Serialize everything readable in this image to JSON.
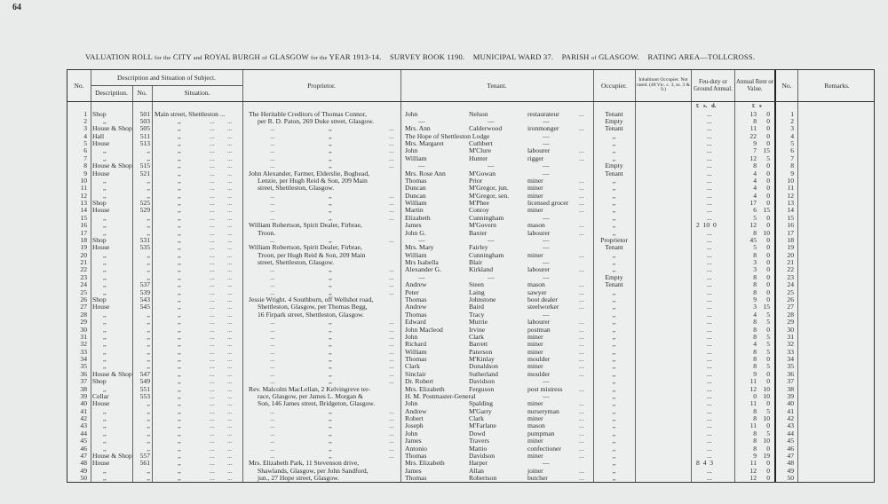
{
  "page_number": "64",
  "title": {
    "part1": "VALUATION ROLL",
    "part2": "for the",
    "part3": "CITY",
    "part4": "and",
    "part5": "ROYAL BURGH",
    "part6": "of",
    "part7": "GLASGOW",
    "part8": "for the",
    "part9": "YEAR 1913-14.",
    "survey": "SURVEY BOOK 1190.",
    "ward": "MUNICIPAL WARD 37.",
    "parish_a": "PARISH",
    "parish_b": "of",
    "parish_c": "GLASGOW.",
    "area": "RATING AREA—TOLLCROSS."
  },
  "headers": {
    "no": "No.",
    "desc_group": "Description and Situation of Subject.",
    "description": "Description.",
    "desc_no": "No.",
    "situation": "Situation.",
    "proprietor": "Proprietor.",
    "tenant": "Tenant.",
    "occupier": "Occupier.",
    "inhabitant": "Inhabitant Occupier. Not rated. (48 Vic. c. 3, ss. 3 & 9.)",
    "feu": "Feu-duty or Ground Annual.",
    "rent": "Annual Rent or Value.",
    "no2": "No.",
    "remarks": "Remarks.",
    "feu_units": "£   s.   d.",
    "rent_units": "£   s"
  },
  "rows": [
    {
      "no": "1",
      "desc": "Shop",
      "num": "501",
      "sit": "Main street, Shettleston ...",
      "prop": "The Heritable Creditors of Thomas Connor,",
      "tf": "John",
      "tl": "Nelson",
      "occ": "restaurateur",
      "occupier": "Tenant",
      "feu": "...",
      "rl": "13",
      "rs": "0"
    },
    {
      "no": "2",
      "desc": ",,",
      "num": "503",
      "sit": ",,",
      "prop": "per R. D. Paton, 269 Duke street, Glasgow.",
      "tf": "—",
      "tl": "—",
      "occ": "—",
      "occupier": "Empty",
      "feu": "...",
      "rl": "8",
      "rs": "0"
    },
    {
      "no": "3",
      "desc": "House & Shop",
      "num": "505",
      "sit": ",,",
      "prop": ",,",
      "tf": "Mrs. Ann",
      "tl": "Calderwood",
      "occ": "ironmonger",
      "occupier": "Tenant",
      "feu": "...",
      "rl": "11",
      "rs": "0"
    },
    {
      "no": "4",
      "desc": "Hall",
      "num": "511",
      "sit": ",,",
      "prop": ",,",
      "tf": "The Hope of Shettleston Lodge",
      "tl": "",
      "occ": "—",
      "occupier": ",,",
      "feu": "...",
      "rl": "22",
      "rs": "0"
    },
    {
      "no": "5",
      "desc": "House",
      "num": "513",
      "sit": ",,",
      "prop": ",,",
      "tf": "Mrs. Margaret",
      "tl": "Cuthbert",
      "occ": "—",
      "occupier": ",,",
      "feu": "...",
      "rl": "9",
      "rs": "0"
    },
    {
      "no": "6",
      "desc": ",,",
      "num": ",,",
      "sit": ",,",
      "prop": ",,",
      "tf": "John",
      "tl": "M'Clure",
      "occ": "labourer",
      "occupier": ",,",
      "feu": "...",
      "rl": "7",
      "rs": "15"
    },
    {
      "no": "7",
      "desc": ",,",
      "num": ",,",
      "sit": ",,",
      "prop": ",,",
      "tf": "William",
      "tl": "Hunter",
      "occ": "rigger",
      "occupier": ",,",
      "feu": "...",
      "rl": "12",
      "rs": "5"
    },
    {
      "no": "8",
      "desc": "House & Shop",
      "num": "515",
      "sit": ",,",
      "prop": ",,",
      "tf": "—",
      "tl": "—",
      "occ": "—",
      "occupier": "Empty",
      "feu": "...",
      "rl": "8",
      "rs": "0"
    },
    {
      "no": "9",
      "desc": "House",
      "num": "521",
      "sit": ",,",
      "prop": "John Alexander, Farmer, Elderslie, Boghead,",
      "tf": "Mrs. Rose Ann",
      "tl": "M'Gowan",
      "occ": "—",
      "occupier": "Tenant",
      "feu": "...",
      "rl": "4",
      "rs": "0"
    },
    {
      "no": "10",
      "desc": ",,",
      "num": ",,",
      "sit": ",,",
      "prop": "Lenzie, per Hugh Reid & Son, 209 Main",
      "tf": "Thomas",
      "tl": "Prior",
      "occ": "miner",
      "occupier": ",,",
      "feu": "...",
      "rl": "4",
      "rs": "0"
    },
    {
      "no": "11",
      "desc": ",,",
      "num": ",,",
      "sit": ",,",
      "prop": "street, Shettleston, Glasgow.",
      "tf": "Duncan",
      "tl": "M'Gregor, jun.",
      "occ": "miner",
      "occupier": ",,",
      "feu": "...",
      "rl": "4",
      "rs": "0"
    },
    {
      "no": "12",
      "desc": ",,",
      "num": ",,",
      "sit": ",,",
      "prop": ",,",
      "tf": "Duncan",
      "tl": "M'Gregor, sen.",
      "occ": "miner",
      "occupier": ",,",
      "feu": "...",
      "rl": "4",
      "rs": "0"
    },
    {
      "no": "13",
      "desc": "Shop",
      "num": "525",
      "sit": ",,",
      "prop": ",,",
      "tf": "William",
      "tl": "M'Phee",
      "occ": "licensed grocer",
      "occupier": ",,",
      "feu": "...",
      "rl": "17",
      "rs": "0"
    },
    {
      "no": "14",
      "desc": "House",
      "num": "529",
      "sit": ",,",
      "prop": ",,",
      "tf": "Martin",
      "tl": "Conroy",
      "occ": "miner",
      "occupier": ",,",
      "feu": "...",
      "rl": "6",
      "rs": "15"
    },
    {
      "no": "15",
      "desc": ",,",
      "num": ",,",
      "sit": ",,",
      "prop": ",,",
      "tf": "Elizabeth",
      "tl": "Cunningham",
      "occ": "—",
      "occupier": ",,",
      "feu": "...",
      "rl": "5",
      "rs": "0"
    },
    {
      "no": "16",
      "desc": ",,",
      "num": ",,",
      "sit": ",,",
      "prop": "William Robertson, Spirit Dealer, Firbrae,",
      "tf": "James",
      "tl": "M'Govern",
      "occ": "mason",
      "occupier": ",,",
      "feu": "2  10  0",
      "rl": "12",
      "rs": "0"
    },
    {
      "no": "17",
      "desc": ",,",
      "num": ",,",
      "sit": ",,",
      "prop": "Troon.",
      "tf": "John G.",
      "tl": "Baxter",
      "occ": "labourer",
      "occupier": ",,",
      "feu": "...",
      "rl": "8",
      "rs": "10"
    },
    {
      "no": "18",
      "desc": "Shop",
      "num": "531",
      "sit": ",,",
      "prop": ",,",
      "tf": "—",
      "tl": "—",
      "occ": "—",
      "occupier": "Proprietor",
      "feu": "...",
      "rl": "45",
      "rs": "0"
    },
    {
      "no": "19",
      "desc": "House",
      "num": "535",
      "sit": ",,",
      "prop": "William Robertson, Spirit Dealer, Firbrae,",
      "tf": "Mrs. Mary",
      "tl": "Fairley",
      "occ": "—",
      "occupier": "Tenant",
      "feu": "...",
      "rl": "5",
      "rs": "0"
    },
    {
      "no": "20",
      "desc": ",,",
      "num": ",,",
      "sit": ",,",
      "prop": "Troon, per Hugh Reid & Son, 209 Main",
      "tf": "William",
      "tl": "Cunningham",
      "occ": "miner",
      "occupier": ",,",
      "feu": "...",
      "rl": "8",
      "rs": "0"
    },
    {
      "no": "21",
      "desc": ",,",
      "num": ",,",
      "sit": ",,",
      "prop": "street, Shettleston, Glasgow.",
      "tf": "Mrs Isabella",
      "tl": "Blair",
      "occ": "—",
      "occupier": ",,",
      "feu": "...",
      "rl": "3",
      "rs": "0"
    },
    {
      "no": "22",
      "desc": ",,",
      "num": ",,",
      "sit": ",,",
      "prop": ",,",
      "tf": "Alexander G.",
      "tl": "Kirkland",
      "occ": "labourer",
      "occupier": ",,",
      "feu": "...",
      "rl": "3",
      "rs": "0"
    },
    {
      "no": "23",
      "desc": ",,",
      "num": ",,",
      "sit": ",,",
      "prop": ",,",
      "tf": "—",
      "tl": "—",
      "occ": "—",
      "occupier": "Empty",
      "feu": "...",
      "rl": "8",
      "rs": "0"
    },
    {
      "no": "24",
      "desc": ",,",
      "num": "537",
      "sit": ",,",
      "prop": ",,",
      "tf": "Andrew",
      "tl": "Steen",
      "occ": "mason",
      "occupier": "Tenant",
      "feu": "...",
      "rl": "8",
      "rs": "0"
    },
    {
      "no": "25",
      "desc": ",,",
      "num": "539",
      "sit": ",,",
      "prop": ",,",
      "tf": "Peter",
      "tl": "Laing",
      "occ": "sawyer",
      "occupier": ",,",
      "feu": "...",
      "rl": "8",
      "rs": "0"
    },
    {
      "no": "26",
      "desc": "Shop",
      "num": "543",
      "sit": ",,",
      "prop": "Jessie Wright. 4 Southburn, off Wellshot road,",
      "tf": "Thomas",
      "tl": "Johnstone",
      "occ": "boot dealer",
      "occupier": ",,",
      "feu": "...",
      "rl": "9",
      "rs": "0"
    },
    {
      "no": "27",
      "desc": "House",
      "num": "545",
      "sit": ",,",
      "prop": "Shettleston, Glasgow, per Thomas Begg,",
      "tf": "Andrew",
      "tl": "Baird",
      "occ": "steelworker",
      "occupier": ",,",
      "feu": "...",
      "rl": "3",
      "rs": "15"
    },
    {
      "no": "28",
      "desc": ",,",
      "num": ",,",
      "sit": ",,",
      "prop": "16 Firpark street, Shettleston, Glasgow.",
      "tf": "Thomas",
      "tl": "Tracy",
      "occ": "—",
      "occupier": ",,",
      "feu": "...",
      "rl": "4",
      "rs": "5"
    },
    {
      "no": "29",
      "desc": ",,",
      "num": ",,",
      "sit": ",,",
      "prop": ",,",
      "tf": "Edward",
      "tl": "Murrie",
      "occ": "labourer",
      "occupier": ",,",
      "feu": "...",
      "rl": "8",
      "rs": "5"
    },
    {
      "no": "30",
      "desc": ",,",
      "num": ",,",
      "sit": ",,",
      "prop": ",,",
      "tf": "John Macleod",
      "tl": "Irvine",
      "occ": "postman",
      "occupier": ",,",
      "feu": "...",
      "rl": "8",
      "rs": "0"
    },
    {
      "no": "31",
      "desc": ",,",
      "num": ",,",
      "sit": ",,",
      "prop": ",,",
      "tf": "John",
      "tl": "Clark",
      "occ": "miner",
      "occupier": ",,",
      "feu": "...",
      "rl": "8",
      "rs": "5"
    },
    {
      "no": "32",
      "desc": ",,",
      "num": ",,",
      "sit": ",,",
      "prop": ",,",
      "tf": "Richard",
      "tl": "Barrett",
      "occ": "miner",
      "occupier": ",,",
      "feu": "...",
      "rl": "4",
      "rs": "5"
    },
    {
      "no": "33",
      "desc": ",,",
      "num": ",,",
      "sit": ",,",
      "prop": ",,",
      "tf": "William",
      "tl": "Paterson",
      "occ": "miner",
      "occupier": ",,",
      "feu": "...",
      "rl": "8",
      "rs": "5"
    },
    {
      "no": "34",
      "desc": ",,",
      "num": ",,",
      "sit": ",,",
      "prop": ",,",
      "tf": "Thomas",
      "tl": "M'Kinlay",
      "occ": "moulder",
      "occupier": ",,",
      "feu": "...",
      "rl": "8",
      "rs": "0"
    },
    {
      "no": "35",
      "desc": ",,",
      "num": ",,",
      "sit": ",,",
      "prop": ",,",
      "tf": "Clark",
      "tl": "Donaldson",
      "occ": "miner",
      "occupier": ",,",
      "feu": "...",
      "rl": "8",
      "rs": "5"
    },
    {
      "no": "36",
      "desc": "House & Shop",
      "num": "547",
      "sit": ",,",
      "prop": ",,",
      "tf": "Sinclair",
      "tl": "Sutherland",
      "occ": "moulder",
      "occupier": ",,",
      "feu": "...",
      "rl": "9",
      "rs": "0"
    },
    {
      "no": "37",
      "desc": "Shop",
      "num": "549",
      "sit": ",,",
      "prop": ",,",
      "tf": "Dr. Robert",
      "tl": "Davidson",
      "occ": "—",
      "occupier": ",,",
      "feu": "...",
      "rl": "11",
      "rs": "0"
    },
    {
      "no": "38",
      "desc": ",,",
      "num": "551",
      "sit": ",,",
      "prop": "Rev. Malcolm MacLellan, 2 Kelvingreve ter-",
      "tf": "Mrs. Elizabeth",
      "tl": "Ferguson",
      "occ": "post mistress",
      "occupier": ",,",
      "feu": "...",
      "rl": "12",
      "rs": "10"
    },
    {
      "no": "39",
      "desc": "Cellar",
      "num": "553",
      "sit": ",,",
      "prop": "race, Glasgow, per James L. Morgan &",
      "tf": "H. M. Postmaster-General",
      "tl": "",
      "occ": "—",
      "occupier": ",,",
      "feu": "...",
      "rl": "0",
      "rs": "10"
    },
    {
      "no": "40",
      "desc": "House",
      "num": ",,",
      "sit": ",,",
      "prop": "Son, 146 James street, Bridgeton, Glasgow.",
      "tf": "John",
      "tl": "Spalding",
      "occ": "miner",
      "occupier": ",,",
      "feu": "...",
      "rl": "11",
      "rs": "0"
    },
    {
      "no": "41",
      "desc": ",,",
      "num": ",,",
      "sit": ",,",
      "prop": ",,",
      "tf": "Andrew",
      "tl": "M'Garry",
      "occ": "nurseryman",
      "occupier": ",,",
      "feu": "...",
      "rl": "8",
      "rs": "5"
    },
    {
      "no": "42",
      "desc": ",,",
      "num": ",,",
      "sit": ",,",
      "prop": ",,",
      "tf": "Robert",
      "tl": "Clark",
      "occ": "miner",
      "occupier": ",,",
      "feu": "...",
      "rl": "8",
      "rs": "10"
    },
    {
      "no": "43",
      "desc": ",,",
      "num": ",,",
      "sit": ",,",
      "prop": ",,",
      "tf": "Joseph",
      "tl": "M'Farlane",
      "occ": "mason",
      "occupier": ",,",
      "feu": "...",
      "rl": "11",
      "rs": "0"
    },
    {
      "no": "44",
      "desc": ",,",
      "num": ",,",
      "sit": ",,",
      "prop": ",,",
      "tf": "John",
      "tl": "Dowd",
      "occ": "pumpman",
      "occupier": ",,",
      "feu": "...",
      "rl": "8",
      "rs": "5"
    },
    {
      "no": "45",
      "desc": ",,",
      "num": ",,",
      "sit": ",,",
      "prop": ",,",
      "tf": "James",
      "tl": "Travers",
      "occ": "miner",
      "occupier": ",,",
      "feu": "...",
      "rl": "8",
      "rs": "10"
    },
    {
      "no": "46",
      "desc": ",,",
      "num": ",,",
      "sit": ",,",
      "prop": ",,",
      "tf": "Antonio",
      "tl": "Mattio",
      "occ": "confectioner",
      "occupier": ",,",
      "feu": "...",
      "rl": "8",
      "rs": "0"
    },
    {
      "no": "47",
      "desc": "House & Shop",
      "num": "557",
      "sit": ",,",
      "prop": ",,",
      "tf": "Thomas",
      "tl": "Davidson",
      "occ": "miner",
      "occupier": ",,",
      "feu": "...",
      "rl": "9",
      "rs": "19"
    },
    {
      "no": "48",
      "desc": "House",
      "num": "561",
      "sit": ",,",
      "prop": "Mrs. Elizabeth Park, 11 Stevenson drive,",
      "tf": "Mrs. Elizabeth",
      "tl": "Harper",
      "occ": "—",
      "occupier": ",,",
      "feu": "8  4  3",
      "rl": "11",
      "rs": "0"
    },
    {
      "no": "49",
      "desc": ",,",
      "num": ",,",
      "sit": ",,",
      "prop": "Shawlands, Glasgow, per John Sandford,",
      "tf": "James",
      "tl": "Allan",
      "occ": "joiner",
      "occupier": ",,",
      "feu": "...",
      "rl": "12",
      "rs": "0"
    },
    {
      "no": "50",
      "desc": ",,",
      "num": ",,",
      "sit": ",,",
      "prop": "jun., 27 Hope street, Glasgow.",
      "tf": "Thomas",
      "tl": "Robertson",
      "occ": "butcher",
      "occupier": ",,",
      "feu": "...",
      "rl": "12",
      "rs": "0"
    }
  ]
}
